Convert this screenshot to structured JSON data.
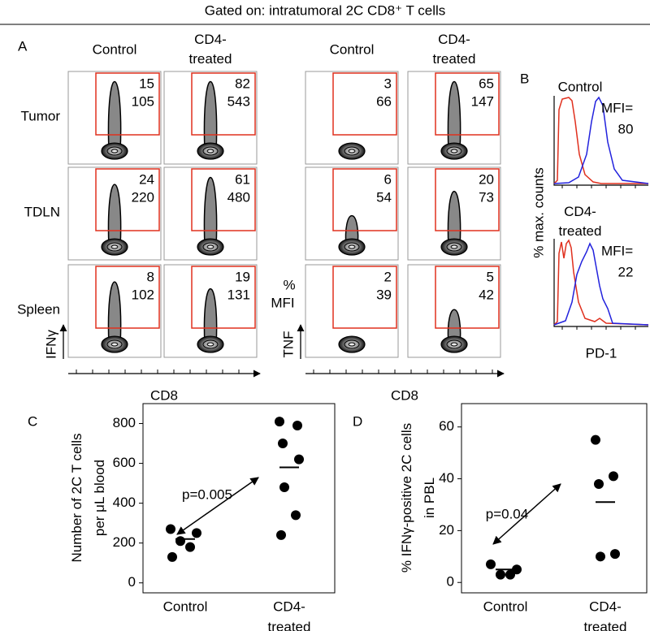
{
  "title": "Gated on: intratumoral 2C CD8⁺ T cells",
  "panel_a": {
    "letter": "A",
    "column_headers": [
      "Control",
      "CD4-\ntreated"
    ],
    "row_labels": [
      "Tumor",
      "TDLN",
      "Spleen"
    ],
    "key_percent": "%",
    "key_mfi": "MFI",
    "blocks": [
      {
        "y_label": "IFNγ",
        "x_label": "CD8",
        "cells": [
          [
            [
              15,
              105
            ],
            [
              82,
              543
            ]
          ],
          [
            [
              24,
              220
            ],
            [
              61,
              480
            ]
          ],
          [
            [
              8,
              102
            ],
            [
              19,
              131
            ]
          ]
        ]
      },
      {
        "y_label": "TNF",
        "x_label": "CD8",
        "cells": [
          [
            [
              3,
              66
            ],
            [
              65,
              147
            ]
          ],
          [
            [
              6,
              54
            ],
            [
              20,
              73
            ]
          ],
          [
            [
              2,
              39
            ],
            [
              5,
              42
            ]
          ]
        ]
      }
    ]
  },
  "panel_b": {
    "letter": "B",
    "groups": [
      {
        "label": "Control",
        "mfi_label": "MFI=",
        "mfi": 80
      },
      {
        "label": "CD4-\ntreated",
        "mfi_label": "MFI=",
        "mfi": 22
      }
    ],
    "y_label": "% max. counts",
    "x_label": "PD-1"
  },
  "chart_data": [
    {
      "type": "dot",
      "letter": "C",
      "y_label": "Number of 2C T cells\nper μL blood",
      "categories": [
        "Control",
        "CD4-\ntreated"
      ],
      "values": [
        [
          270,
          250,
          210,
          180,
          130
        ],
        [
          810,
          790,
          700,
          620,
          480,
          340,
          240
        ]
      ],
      "means": [
        220,
        580
      ],
      "ylim": [
        -50,
        900
      ],
      "yticks": [
        0,
        200,
        400,
        600,
        800
      ],
      "annotation": "p=0.005"
    },
    {
      "type": "dot",
      "letter": "D",
      "y_label": "% IFNγ-positive 2C cells\nin PBL",
      "categories": [
        "Control",
        "CD4-\ntreated"
      ],
      "values": [
        [
          7,
          5,
          3,
          3
        ],
        [
          55,
          41,
          38,
          11,
          10
        ]
      ],
      "means": [
        5,
        31
      ],
      "ylim": [
        -4,
        69
      ],
      "yticks": [
        0,
        20,
        40,
        60
      ],
      "annotation": "p=0.04"
    }
  ]
}
